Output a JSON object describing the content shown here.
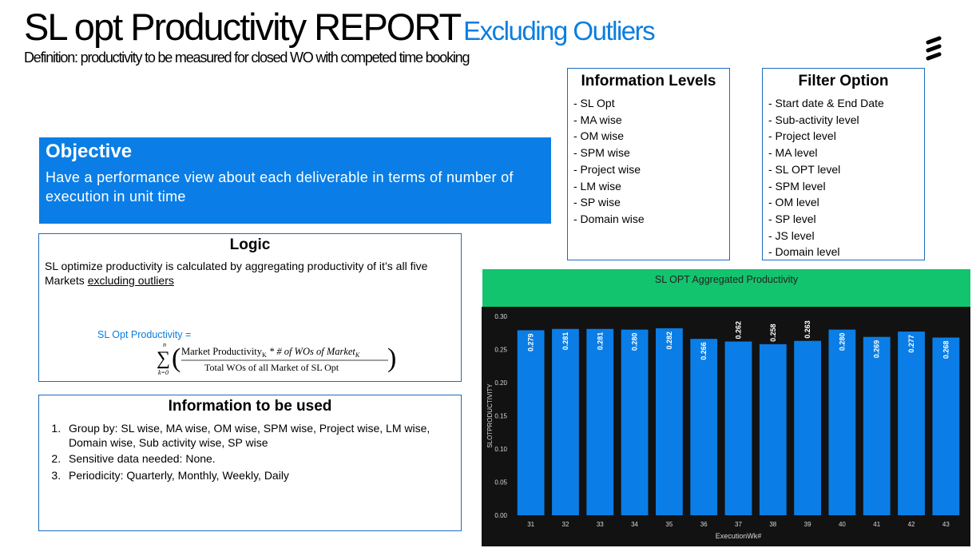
{
  "title": {
    "main": "SL opt Productivity REPORT",
    "accent": "Excluding Outliers"
  },
  "definition": "Definition: productivity  to be measured for closed WO with competed time booking",
  "logo_icon": "ericsson-logo-icon",
  "information_levels": {
    "heading": "Information Levels",
    "items": [
      "- SL Opt",
      "- MA wise",
      "- OM wise",
      "- SPM wise",
      "- Project wise",
      "- LM wise",
      "- SP wise",
      "- Domain wise"
    ]
  },
  "filter_option": {
    "heading": "Filter Option",
    "items": [
      "- Start date & End Date",
      "- Sub-activity level",
      "- Project level",
      "- MA level",
      "- SL OPT level",
      "- SPM level",
      "- OM level",
      "- SP level",
      "- JS level",
      "- Domain level"
    ]
  },
  "objective": {
    "heading": "Objective",
    "text": "Have a performance view about each deliverable in terms of number of execution in unit time"
  },
  "logic": {
    "heading": "Logic",
    "text_prefix": "SL optimize productivity is calculated by aggregating productivity of it’s all five Markets ",
    "text_underlined": "excluding outliers",
    "formula_label": "SL Opt Productivity =",
    "formula_numerator_a": "Market Productivity",
    "formula_numerator_b": "K",
    "formula_numerator_c": " * # of WOs of Market",
    "formula_numerator_d": "K",
    "formula_denominator": "Total WOs  of all Market of SL Opt",
    "sum_upper": "n",
    "sum_lower": "k=0"
  },
  "information_used": {
    "heading": "Information to be used",
    "items": [
      "Group by: SL wise, MA wise, OM wise, SPM wise, Project wise, LM wise, Domain wise, Sub activity wise, SP wise",
      "Sensitive data needed: None.",
      "Periodicity: Quarterly, Monthly, Weekly, Daily"
    ]
  },
  "chart_data": {
    "type": "bar",
    "title": "SL OPT Aggregated Productivity",
    "xlabel": "ExecutionWk#",
    "ylabel": "SLOTPRODUCTIVITY",
    "categories": [
      "31",
      "32",
      "33",
      "34",
      "35",
      "36",
      "37",
      "38",
      "39",
      "40",
      "41",
      "42",
      "43"
    ],
    "values": [
      0.279,
      0.281,
      0.281,
      0.28,
      0.282,
      0.266,
      0.262,
      0.258,
      0.263,
      0.28,
      0.269,
      0.277,
      0.268
    ],
    "data_labels": [
      "0.279",
      "0.281",
      "0.281",
      "0.280",
      "0.282",
      "0.266",
      "0.262",
      "0.258",
      "0.263",
      "0.280",
      "0.269",
      "0.277",
      "0.268"
    ],
    "yticks": [
      "0.00",
      "0.05",
      "0.10",
      "0.15",
      "0.20",
      "0.25",
      "0.30"
    ],
    "ylim": [
      0,
      0.3
    ],
    "grid": false,
    "colors": {
      "bar": "#0a7ee6",
      "background": "#121212",
      "header": "#12c46e",
      "text": "#d8d8d8"
    }
  }
}
